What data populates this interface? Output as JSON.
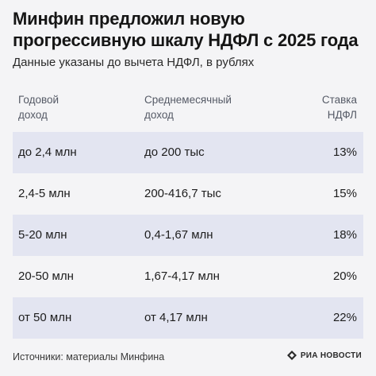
{
  "title": "Минфин предложил новую прогрессивную шкалу НДФЛ с 2025 года",
  "subtitle": "Данные указаны до вычета НДФЛ, в рублях",
  "table": {
    "headers": [
      "Годовой\nдоход",
      "Среднемесячный\nдоход",
      "Ставка\nНДФЛ"
    ],
    "rows": [
      [
        "до 2,4 млн",
        "до 200 тыс",
        "13%"
      ],
      [
        "2,4-5 млн",
        "200-416,7 тыс",
        "15%"
      ],
      [
        "5-20 млн",
        "0,4-1,67 млн",
        "18%"
      ],
      [
        "20-50 млн",
        "1,67-4,17 млн",
        "20%"
      ],
      [
        "от 50 млн",
        "от 4,17 млн",
        "22%"
      ]
    ]
  },
  "footer": {
    "source": "Источники: материалы Минфина",
    "logo_text": "РИА НОВОСТИ"
  },
  "colors": {
    "background": "#f4f4f6",
    "row_shade": "#e3e5f1",
    "header_text": "#555a66"
  }
}
